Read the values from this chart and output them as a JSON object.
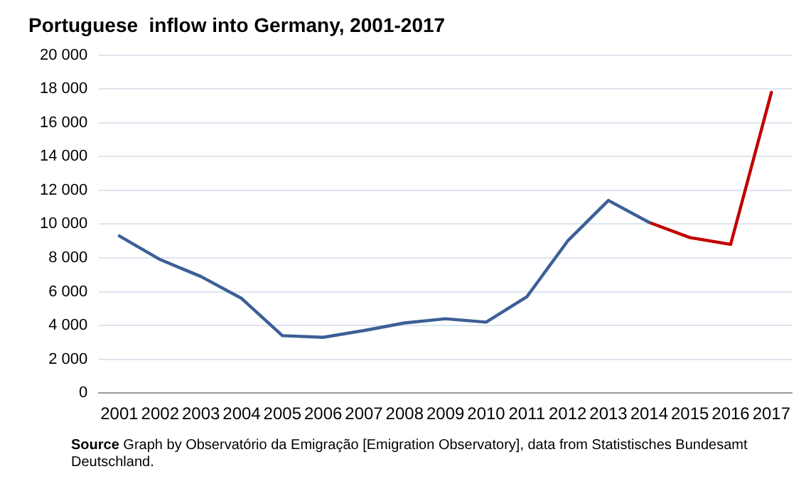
{
  "chart_data": {
    "type": "line",
    "title": "Portuguese  inflow into Germany, 2001-2017",
    "categories": [
      "2001",
      "2002",
      "2003",
      "2004",
      "2005",
      "2006",
      "2007",
      "2008",
      "2009",
      "2010",
      "2011",
      "2012",
      "2013",
      "2014",
      "2015",
      "2016",
      "2017"
    ],
    "series": [
      {
        "color": "#3c5f96",
        "values": [
          9300,
          7900,
          6900,
          5600,
          3400,
          3300,
          3700,
          4150,
          4400,
          4200,
          5700,
          9000,
          11400,
          10100,
          null,
          null,
          null
        ]
      },
      {
        "color": "#c00000",
        "values": [
          null,
          null,
          null,
          null,
          null,
          null,
          null,
          null,
          null,
          null,
          null,
          null,
          null,
          10100,
          9200,
          8800,
          17800
        ]
      }
    ],
    "ylim": [
      0,
      20000
    ],
    "yticks": [
      {
        "value": 0,
        "label": "0"
      },
      {
        "value": 2000,
        "label": "2 000"
      },
      {
        "value": 4000,
        "label": "4 000"
      },
      {
        "value": 6000,
        "label": "6 000"
      },
      {
        "value": 8000,
        "label": "8 000"
      },
      {
        "value": 10000,
        "label": "10 000"
      },
      {
        "value": 12000,
        "label": "12 000"
      },
      {
        "value": 14000,
        "label": "14 000"
      },
      {
        "value": 16000,
        "label": "16 000"
      },
      {
        "value": 18000,
        "label": "18 000"
      },
      {
        "value": 20000,
        "label": "20 000"
      }
    ],
    "grid": "y",
    "legend": false,
    "marker": "none",
    "line_style": "solid",
    "annotations": [
      "Source  Graph by Observatório da Emigração [Emigration Observatory], data from Statistisches Bundesamt Deutschland."
    ]
  }
}
